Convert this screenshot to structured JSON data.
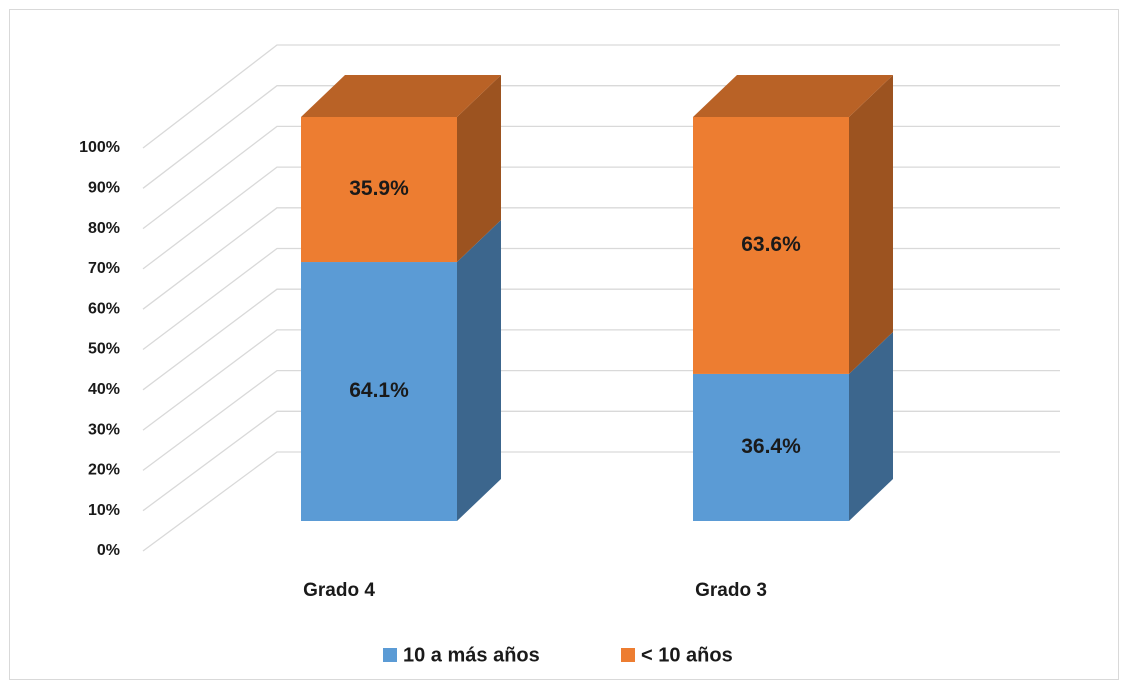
{
  "chart_data": {
    "type": "bar3d_stacked",
    "categories": [
      "Grado 4",
      "Grado 3"
    ],
    "series": [
      {
        "name": "10 a más años",
        "color": "#5b9bd5",
        "values": [
          64.1,
          36.4
        ],
        "value_labels": [
          "64.1%",
          "36.4%"
        ]
      },
      {
        "name": "< 10 años",
        "color": "#ed7d31",
        "values": [
          35.9,
          63.6
        ],
        "value_labels": [
          "35.9%",
          "63.6%"
        ]
      }
    ],
    "ylim": [
      0,
      100
    ],
    "yticks": [
      {
        "value": 0,
        "label": "0%"
      },
      {
        "value": 10,
        "label": "10%"
      },
      {
        "value": 20,
        "label": "20%"
      },
      {
        "value": 30,
        "label": "30%"
      },
      {
        "value": 40,
        "label": "40%"
      },
      {
        "value": 50,
        "label": "50%"
      },
      {
        "value": 60,
        "label": "60%"
      },
      {
        "value": 70,
        "label": "70%"
      },
      {
        "value": 80,
        "label": "80%"
      },
      {
        "value": 90,
        "label": "90%"
      },
      {
        "value": 100,
        "label": "100%"
      }
    ],
    "grid": true,
    "legend": "bottom"
  }
}
